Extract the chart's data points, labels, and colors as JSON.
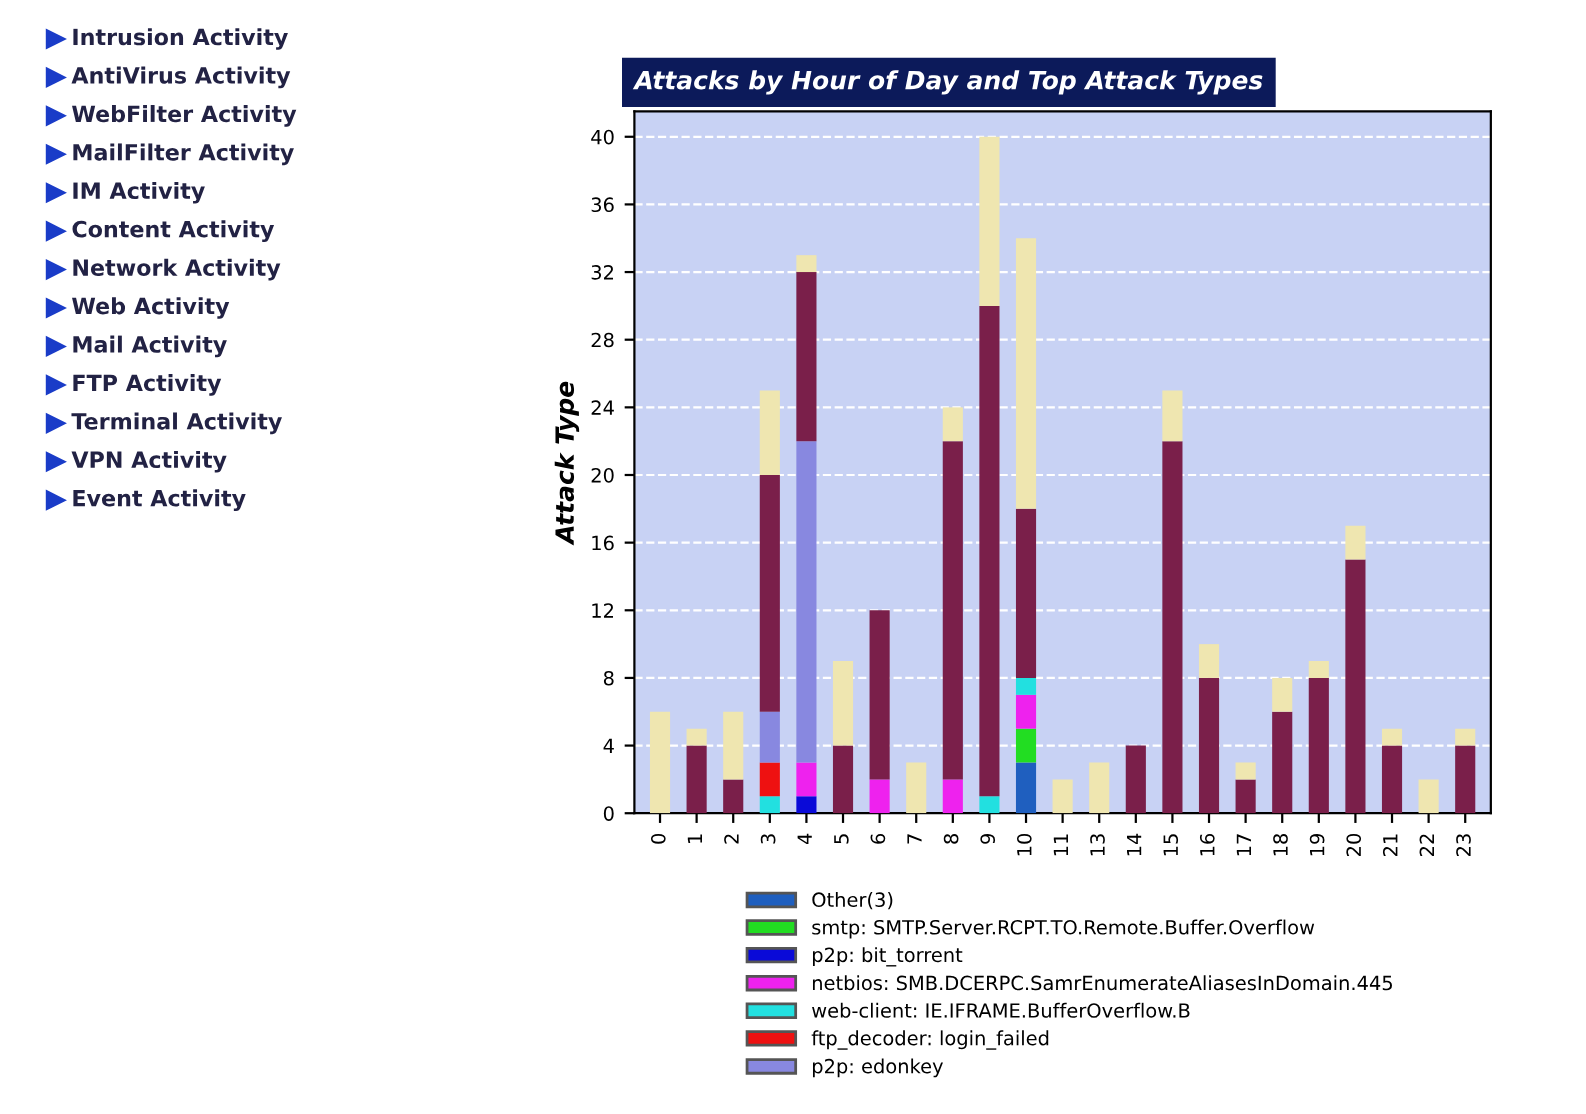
{
  "chart_data": {
    "type": "bar",
    "stacked": true,
    "title": "Attacks by Hour of Day and Top Attack Types",
    "ylabel": "Attack Type",
    "categories": [
      "0",
      "1",
      "2",
      "3",
      "4",
      "5",
      "6",
      "7",
      "8",
      "9",
      "10",
      "11",
      "13",
      "14",
      "15",
      "16",
      "17",
      "18",
      "19",
      "20",
      "21",
      "22",
      "23"
    ],
    "series": [
      {
        "name": "Other(3)",
        "color": "#1f5fbf",
        "values": [
          0,
          0,
          0,
          0,
          0,
          0,
          0,
          0,
          0,
          0,
          3,
          0,
          0,
          0,
          0,
          0,
          0,
          0,
          0,
          0,
          0,
          0,
          0
        ]
      },
      {
        "name": "smtp: SMTP.Server.RCPT.TO.Remote.Buffer.Overflow",
        "color": "#22dd22",
        "values": [
          0,
          0,
          0,
          0,
          0,
          0,
          0,
          0,
          0,
          0,
          2,
          0,
          0,
          0,
          0,
          0,
          0,
          0,
          0,
          0,
          0,
          0,
          0
        ]
      },
      {
        "name": "p2p: bit_torrent",
        "color": "#0a0ad8",
        "values": [
          0,
          0,
          0,
          0,
          1,
          0,
          0,
          0,
          0,
          0,
          0,
          0,
          0,
          0,
          0,
          0,
          0,
          0,
          0,
          0,
          0,
          0,
          0
        ]
      },
      {
        "name": "netbios: SMB.DCERPC.SamrEnumerateAliasesInDomain.445",
        "color": "#ee22ee",
        "values": [
          0,
          0,
          0,
          0,
          2,
          0,
          2,
          0,
          2,
          0,
          2,
          0,
          0,
          0,
          0,
          0,
          0,
          0,
          0,
          0,
          0,
          0,
          0
        ]
      },
      {
        "name": "web-client: IE.IFRAME.BufferOverflow.B",
        "color": "#22e0e0",
        "values": [
          0,
          0,
          0,
          1,
          0,
          0,
          0,
          0,
          0,
          1,
          1,
          0,
          0,
          0,
          0,
          0,
          0,
          0,
          0,
          0,
          0,
          0,
          0
        ]
      },
      {
        "name": "ftp_decoder: login_failed",
        "color": "#ee1111",
        "values": [
          0,
          0,
          0,
          2,
          0,
          0,
          0,
          0,
          0,
          0,
          0,
          0,
          0,
          0,
          0,
          0,
          0,
          0,
          0,
          0,
          0,
          0,
          0
        ]
      },
      {
        "name": "p2p: edonkey",
        "color": "#8888e0",
        "values": [
          0,
          0,
          0,
          3,
          19,
          0,
          0,
          0,
          0,
          0,
          0,
          0,
          0,
          0,
          0,
          0,
          0,
          0,
          0,
          0,
          0,
          0,
          0
        ]
      },
      {
        "color": "#7a1f4a",
        "values": [
          0,
          4,
          2,
          14,
          10,
          4,
          10,
          0,
          20,
          29,
          10,
          0,
          0,
          4,
          22,
          8,
          2,
          6,
          8,
          15,
          4,
          0,
          4
        ]
      },
      {
        "color": "#efe6b0",
        "values": [
          6,
          1,
          4,
          5,
          1,
          5,
          0,
          3,
          2,
          10,
          16,
          2,
          3,
          0,
          3,
          2,
          1,
          2,
          1,
          2,
          1,
          2,
          1
        ]
      }
    ],
    "ylim": [
      0,
      41.5
    ],
    "yticks": [
      0,
      4,
      8,
      12,
      16,
      20,
      24,
      28,
      32,
      36,
      40
    ],
    "grid": "y",
    "legend": "bottom",
    "annotations": [
      "Intrusion Activity",
      "AntiVirus Activity",
      "WebFilter Activity",
      "MailFilter Activity",
      "IM Activity",
      "Content Activity",
      "Network Activity",
      "Web Activity",
      "Mail Activity",
      "FTP Activity",
      "Terminal Activity",
      "VPN Activity",
      "Event Activity"
    ]
  }
}
